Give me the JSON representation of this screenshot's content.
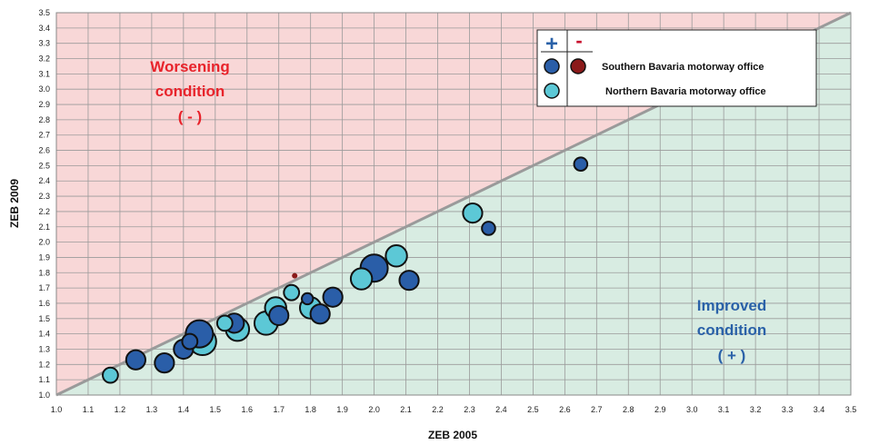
{
  "chart_data": {
    "type": "scatter",
    "xlabel": "ZEB 2005",
    "ylabel": "ZEB 2009",
    "xlim": [
      1.0,
      3.5
    ],
    "ylim": [
      1.0,
      3.5
    ],
    "x_ticks": [
      "1.0",
      "1.1",
      "1.2",
      "1.3",
      "1.4",
      "1.5",
      "1.6",
      "1.7",
      "1.8",
      "1.9",
      "2.0",
      "2.1",
      "2.2",
      "2.3",
      "2.4",
      "2.5",
      "2.6",
      "2.7",
      "2.8",
      "2.9",
      "3.0",
      "3.1",
      "3.2",
      "3.3",
      "3.4",
      "3.5"
    ],
    "y_ticks": [
      "1.0",
      "1.1",
      "1.2",
      "1.3",
      "1.4",
      "1.5",
      "1.6",
      "1.7",
      "1.8",
      "1.9",
      "2.0",
      "2.1",
      "2.2",
      "2.3",
      "2.4",
      "2.5",
      "2.6",
      "2.7",
      "2.8",
      "2.9",
      "3.0",
      "3.1",
      "3.2",
      "3.3",
      "3.4",
      "3.5"
    ],
    "grid": true,
    "diagonal": true,
    "regions": {
      "above": [
        "Worsening",
        "condition",
        "( - )"
      ],
      "below": [
        "Improved",
        "condition",
        "( + )"
      ]
    },
    "colors": {
      "southern": "#2a5ea8",
      "northern": "#5cc8d6",
      "negative": "#8b1a1a",
      "worse_bg": "#f8d7d7",
      "better_bg": "#d8ece2",
      "diagonal": "#9a9a9a"
    },
    "legend": {
      "position": "top-right",
      "plus": "+",
      "minus": "-",
      "entries": [
        "Southern Bavaria motorway office",
        "Northern Bavaria motorway office"
      ]
    },
    "series": [
      {
        "name": "Southern Bavaria motorway office",
        "points": [
          {
            "x": 1.25,
            "y": 1.23,
            "size": 3
          },
          {
            "x": 1.34,
            "y": 1.21,
            "size": 3
          },
          {
            "x": 1.4,
            "y": 1.3,
            "size": 3
          },
          {
            "x": 1.42,
            "y": 1.35,
            "size": 2
          },
          {
            "x": 1.45,
            "y": 1.4,
            "size": 5
          },
          {
            "x": 1.56,
            "y": 1.47,
            "size": 3
          },
          {
            "x": 1.7,
            "y": 1.52,
            "size": 3
          },
          {
            "x": 1.79,
            "y": 1.63,
            "size": 1
          },
          {
            "x": 1.83,
            "y": 1.53,
            "size": 3
          },
          {
            "x": 1.87,
            "y": 1.64,
            "size": 3
          },
          {
            "x": 2.0,
            "y": 1.83,
            "size": 5
          },
          {
            "x": 2.11,
            "y": 1.75,
            "size": 3
          },
          {
            "x": 2.36,
            "y": 2.09,
            "size": 1.5
          },
          {
            "x": 2.65,
            "y": 2.51,
            "size": 1.5
          }
        ]
      },
      {
        "name": "Northern Bavaria motorway office",
        "points": [
          {
            "x": 1.17,
            "y": 1.13,
            "size": 2
          },
          {
            "x": 1.46,
            "y": 1.35,
            "size": 5
          },
          {
            "x": 1.53,
            "y": 1.47,
            "size": 2
          },
          {
            "x": 1.57,
            "y": 1.43,
            "size": 4
          },
          {
            "x": 1.66,
            "y": 1.47,
            "size": 4
          },
          {
            "x": 1.69,
            "y": 1.57,
            "size": 3.5
          },
          {
            "x": 1.74,
            "y": 1.67,
            "size": 2
          },
          {
            "x": 1.8,
            "y": 1.57,
            "size": 3.5
          },
          {
            "x": 1.96,
            "y": 1.76,
            "size": 3.5
          },
          {
            "x": 2.07,
            "y": 1.91,
            "size": 3.5
          },
          {
            "x": 2.31,
            "y": 2.19,
            "size": 3
          }
        ]
      },
      {
        "name": "negative",
        "points": [
          {
            "x": 1.75,
            "y": 1.78,
            "size": 0.4
          }
        ]
      }
    ]
  }
}
